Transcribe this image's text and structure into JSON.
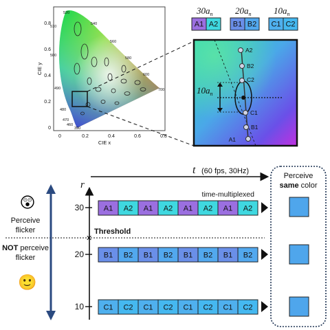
{
  "cie": {
    "x_axis_label": "CIE x",
    "y_axis_label": "CIE y",
    "x_ticks": [
      "0",
      "0.2",
      "0.4",
      "0.6",
      "0.8"
    ],
    "y_ticks": [
      "0",
      "0.2",
      "0.4",
      "0.6",
      "0.8"
    ],
    "wavelength_labels": [
      "520",
      "540",
      "560",
      "580",
      "600",
      "700",
      "510",
      "500",
      "490",
      "480",
      "470",
      "460",
      "390"
    ]
  },
  "legend": {
    "groups": [
      {
        "label": "30",
        "sub": "n",
        "cells": [
          "A1",
          "A2"
        ],
        "color": "#9b6fe0"
      },
      {
        "label": "20",
        "sub": "n",
        "cells": [
          "B1",
          "B2"
        ],
        "color": "#5b8fe8"
      },
      {
        "label": "10",
        "sub": "n",
        "cells": [
          "C1",
          "C2"
        ],
        "color": "#3fb4e8"
      }
    ]
  },
  "zoom": {
    "points": [
      "A2",
      "B2",
      "C2",
      "C1",
      "B1",
      "A1"
    ],
    "scale_label": "10",
    "scale_sub": "n"
  },
  "bottom": {
    "time_axis_var": "t",
    "time_axis_note": "(60 fps, 30Hz)",
    "r_label": "r",
    "multiplex_label": "time-multiplexed",
    "threshold_label": "Threshold",
    "perceive_flicker": [
      "Perceive",
      "flicker"
    ],
    "not_perceive_flicker": [
      "NOT",
      "perceive",
      "flicker"
    ],
    "perceive_same": [
      "Perceive",
      "same",
      "color"
    ],
    "face_top": "😲",
    "face_bottom": "🙂",
    "rows": [
      {
        "r": "30",
        "cells": [
          "A1",
          "A2",
          "A1",
          "A2",
          "A1",
          "A2",
          "A1",
          "A2"
        ],
        "colors": [
          "#9b6fe0",
          "#3fd8e0"
        ]
      },
      {
        "r": "20",
        "cells": [
          "B1",
          "B2",
          "B1",
          "B2",
          "B1",
          "B2",
          "B1",
          "B2"
        ],
        "colors": [
          "#6a8fe8",
          "#52a8ee"
        ]
      },
      {
        "r": "10",
        "cells": [
          "C1",
          "C2",
          "C1",
          "C2",
          "C1",
          "C2",
          "C1",
          "C2"
        ],
        "colors": [
          "#4fb0ee",
          "#45b8f0"
        ]
      }
    ],
    "result_color": "#4fa6ec"
  }
}
